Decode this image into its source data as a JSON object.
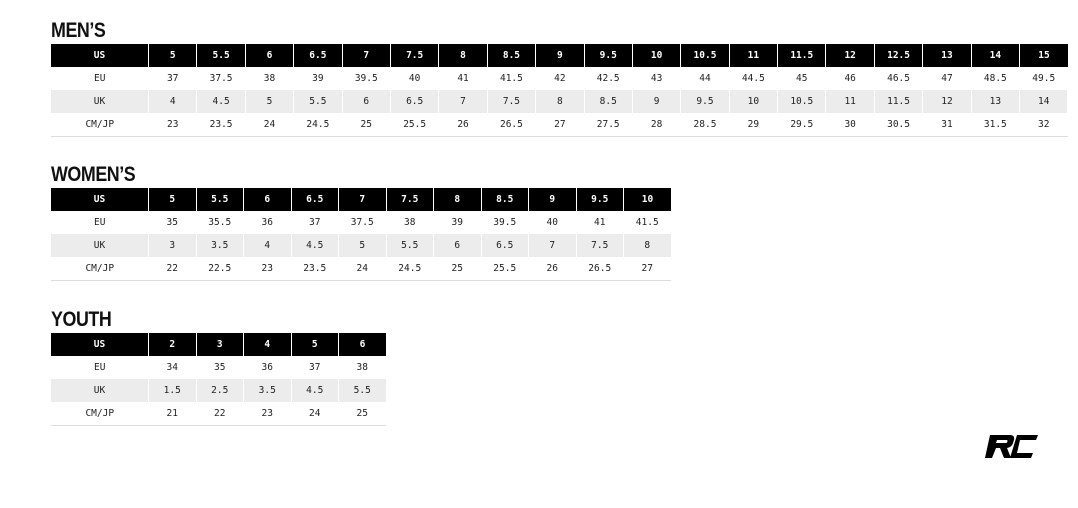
{
  "tables": [
    {
      "id": "mens",
      "title": "MEN’S",
      "rows": [
        {
          "label": "US",
          "values": [
            "5",
            "5.5",
            "6",
            "6.5",
            "7",
            "7.5",
            "8",
            "8.5",
            "9",
            "9.5",
            "10",
            "10.5",
            "11",
            "11.5",
            "12",
            "12.5",
            "13",
            "14",
            "15"
          ]
        },
        {
          "label": "EU",
          "values": [
            "37",
            "37.5",
            "38",
            "39",
            "39.5",
            "40",
            "41",
            "41.5",
            "42",
            "42.5",
            "43",
            "44",
            "44.5",
            "45",
            "46",
            "46.5",
            "47",
            "48.5",
            "49.5"
          ]
        },
        {
          "label": "UK",
          "values": [
            "4",
            "4.5",
            "5",
            "5.5",
            "6",
            "6.5",
            "7",
            "7.5",
            "8",
            "8.5",
            "9",
            "9.5",
            "10",
            "10.5",
            "11",
            "11.5",
            "12",
            "13",
            "14"
          ]
        },
        {
          "label": "CM/JP",
          "values": [
            "23",
            "23.5",
            "24",
            "24.5",
            "25",
            "25.5",
            "26",
            "26.5",
            "27",
            "27.5",
            "28",
            "28.5",
            "29",
            "29.5",
            "30",
            "30.5",
            "31",
            "31.5",
            "32"
          ]
        }
      ]
    },
    {
      "id": "womens",
      "title": "WOMEN’S",
      "rows": [
        {
          "label": "US",
          "values": [
            "5",
            "5.5",
            "6",
            "6.5",
            "7",
            "7.5",
            "8",
            "8.5",
            "9",
            "9.5",
            "10"
          ]
        },
        {
          "label": "EU",
          "values": [
            "35",
            "35.5",
            "36",
            "37",
            "37.5",
            "38",
            "39",
            "39.5",
            "40",
            "41",
            "41.5"
          ]
        },
        {
          "label": "UK",
          "values": [
            "3",
            "3.5",
            "4",
            "4.5",
            "5",
            "5.5",
            "6",
            "6.5",
            "7",
            "7.5",
            "8"
          ]
        },
        {
          "label": "CM/JP",
          "values": [
            "22",
            "22.5",
            "23",
            "23.5",
            "24",
            "24.5",
            "25",
            "25.5",
            "26",
            "26.5",
            "27"
          ]
        }
      ]
    },
    {
      "id": "youth",
      "title": "YOUTH",
      "rows": [
        {
          "label": "US",
          "values": [
            "2",
            "3",
            "4",
            "5",
            "6"
          ]
        },
        {
          "label": "EU",
          "values": [
            "34",
            "35",
            "36",
            "37",
            "38"
          ]
        },
        {
          "label": "UK",
          "values": [
            "1.5",
            "2.5",
            "3.5",
            "4.5",
            "5.5"
          ]
        },
        {
          "label": "CM/JP",
          "values": [
            "21",
            "22",
            "23",
            "24",
            "25"
          ]
        }
      ]
    }
  ],
  "logo": {
    "text": "RC",
    "icon": "rc-logo-icon"
  },
  "colors": {
    "header_bg": "#000000",
    "alt_row_bg": "#ececec"
  }
}
